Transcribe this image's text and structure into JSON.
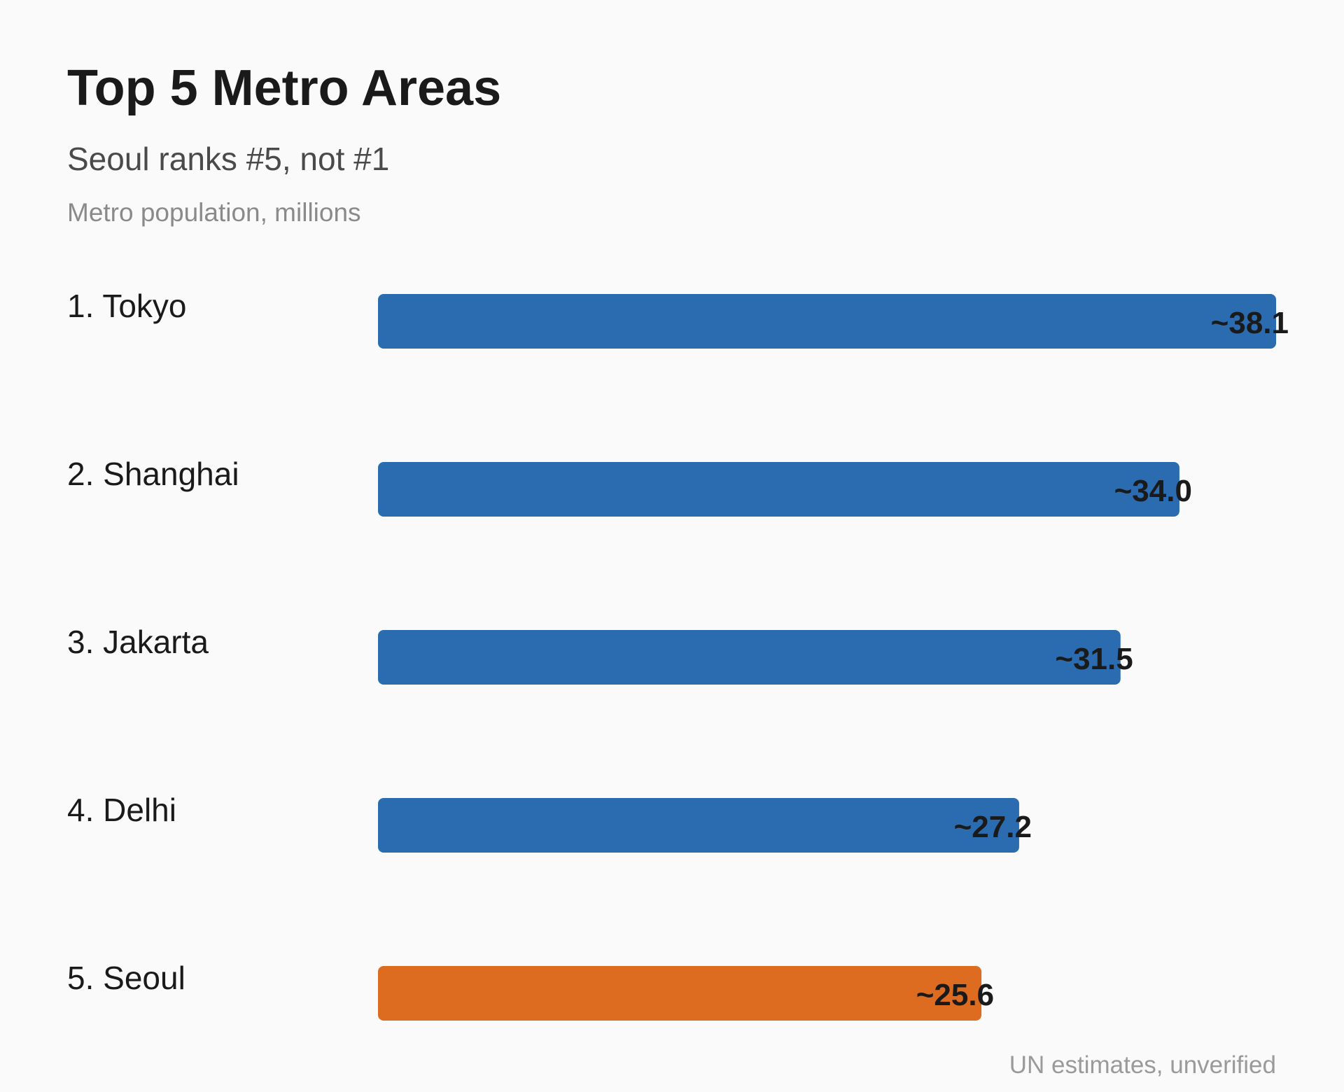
{
  "chart_data": {
    "type": "bar",
    "orientation": "horizontal",
    "title": "Top 5 Metro Areas",
    "subtitle": "Seoul ranks #5, not #1",
    "unit_label": "Metro population, millions",
    "source_note": "UN estimates, unverified",
    "categories": [
      "1. Tokyo",
      "2. Shanghai",
      "3. Jakarta",
      "4. Delhi",
      "5. Seoul"
    ],
    "values": [
      38.1,
      34.0,
      31.5,
      27.2,
      25.6
    ],
    "value_labels": [
      "~38.1",
      "~34.0",
      "~31.5",
      "~27.2",
      "~25.6"
    ],
    "colors": [
      "#2b6cb0",
      "#2b6cb0",
      "#2b6cb0",
      "#2b6cb0",
      "#dd6b20"
    ],
    "highlight_category": "5. Seoul",
    "xlim": [
      0,
      38.1
    ],
    "grid": false,
    "legend": "none"
  }
}
